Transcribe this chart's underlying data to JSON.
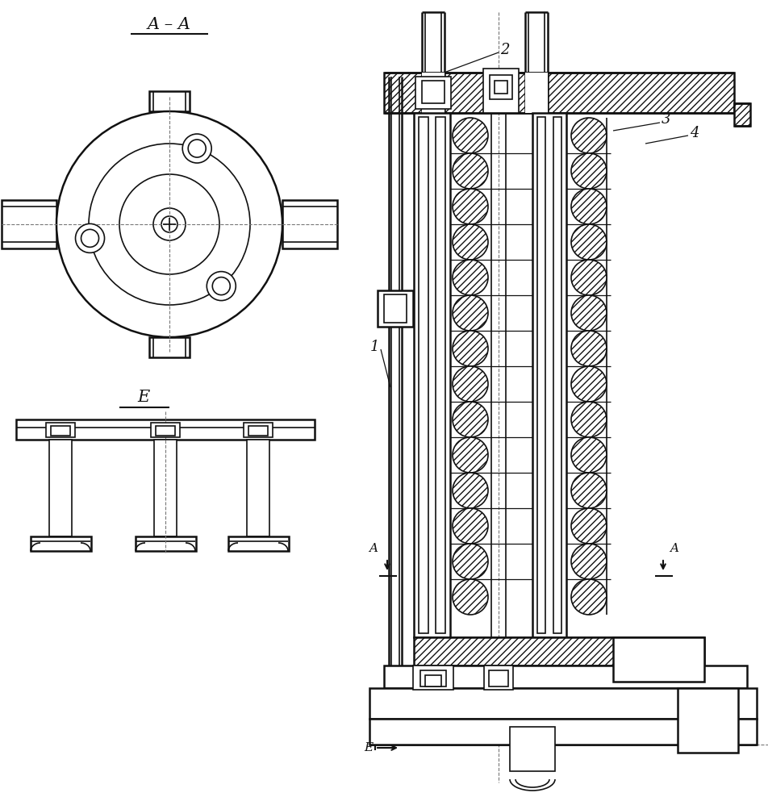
{
  "bg_color": "#ffffff",
  "line_color": "#111111",
  "fig_width": 9.53,
  "fig_height": 9.88,
  "labels": {
    "AA": "A – A",
    "E_top": "E",
    "E_arrow": "E",
    "label1": "1",
    "label2": "2",
    "label3": "3",
    "label4": "4",
    "A_left": "A",
    "A_right": "A"
  }
}
